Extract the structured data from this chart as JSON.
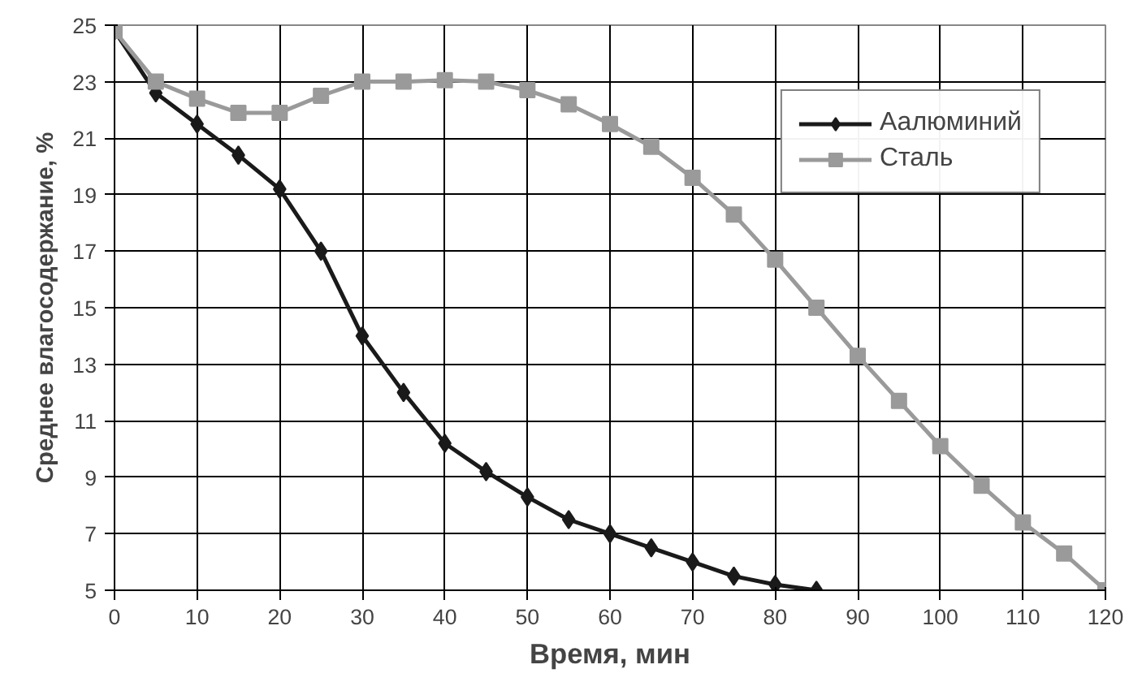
{
  "chart_data": {
    "type": "line",
    "xlabel": "Время, мин",
    "ylabel": "Среднее влагосодержание, %",
    "xlim": [
      0,
      120
    ],
    "xticks": [
      0,
      10,
      20,
      30,
      40,
      50,
      60,
      70,
      80,
      90,
      100,
      110,
      120
    ],
    "ylim": [
      5,
      25
    ],
    "yticks": [
      5,
      7,
      9,
      11,
      13,
      15,
      17,
      19,
      21,
      23,
      25
    ],
    "grid": true,
    "legend": "top right",
    "series": [
      {
        "name": "Аалюминий",
        "color": "#1a1a1a",
        "marker": "diamond",
        "x": [
          0,
          5,
          10,
          15,
          20,
          25,
          30,
          35,
          40,
          45,
          50,
          55,
          60,
          65,
          70,
          75,
          80,
          85
        ],
        "values": [
          24.8,
          22.6,
          21.5,
          20.4,
          19.2,
          17.0,
          14.0,
          12.0,
          10.2,
          9.2,
          8.3,
          7.5,
          7.0,
          6.5,
          6.0,
          5.5,
          5.2,
          5.0
        ]
      },
      {
        "name": "Сталь",
        "color": "#9a9a9a",
        "marker": "square",
        "x": [
          0,
          5,
          10,
          15,
          20,
          25,
          30,
          35,
          40,
          45,
          50,
          55,
          60,
          65,
          70,
          75,
          80,
          85,
          90,
          95,
          100,
          105,
          110,
          115,
          120
        ],
        "values": [
          24.8,
          23.0,
          22.4,
          21.9,
          21.9,
          22.5,
          23.0,
          23.0,
          23.05,
          23.0,
          22.7,
          22.2,
          21.5,
          20.7,
          19.6,
          18.3,
          16.7,
          15.0,
          13.3,
          11.7,
          10.1,
          8.7,
          7.4,
          6.3,
          5.0
        ]
      }
    ]
  }
}
